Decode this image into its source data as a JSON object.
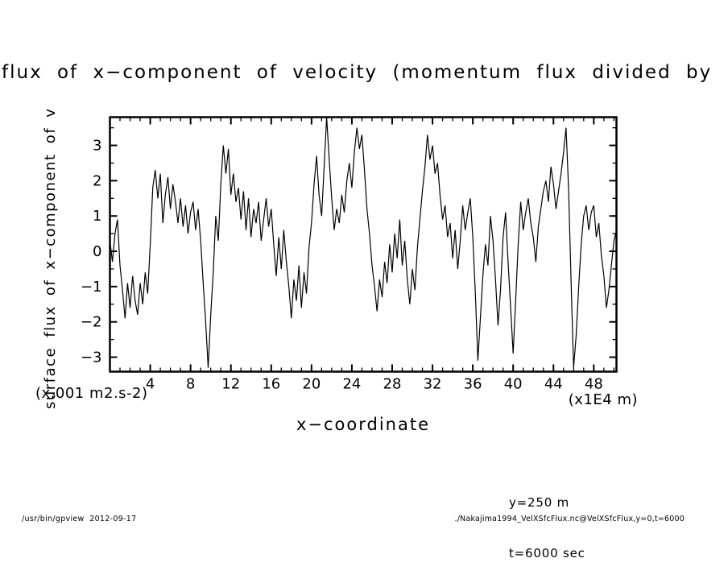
{
  "footer": {
    "left": "/usr/bin/gpview  2012-09-17",
    "right": "./Nakajima1994_VelXSfcFlux.nc@VelXSfcFlux,y=0,t=6000"
  },
  "chart_data": {
    "type": "line",
    "title": "flux of x−component of velocity (momentum flux divided by",
    "xlabel": "x−coordinate",
    "ylabel": "surface flux of x−component of v",
    "x_unit_label": "(x1E4 m)",
    "y_unit_label": "(x.001 m2.s-2)",
    "annotations": [
      "y=250 m",
      "t=6000 sec"
    ],
    "line_color": "#000000",
    "grid": false,
    "legend": "none",
    "xlim": [
      0,
      50.25
    ],
    "ylim": [
      -3.41,
      3.8
    ],
    "xticks": {
      "major_start": 4,
      "major_step": 4,
      "major_end": 48,
      "minor_step": 1
    },
    "yticks": {
      "major_start": -3,
      "major_step": 1,
      "major_end": 3,
      "minor_step": 0.5
    },
    "x_start": 0,
    "x_step": 0.25,
    "values": [
      0.3,
      -0.3,
      0.5,
      0.9,
      -0.4,
      -1.1,
      -1.9,
      -0.9,
      -1.6,
      -0.7,
      -1.4,
      -1.8,
      -0.9,
      -1.5,
      -0.6,
      -1.2,
      0.2,
      1.8,
      2.3,
      1.5,
      2.2,
      0.8,
      1.6,
      2.1,
      1.2,
      1.9,
      1.4,
      0.8,
      1.5,
      0.7,
      1.3,
      0.5,
      1.1,
      1.4,
      0.6,
      1.2,
      0.3,
      -0.9,
      -2.0,
      -3.3,
      -1.8,
      -0.6,
      1.0,
      0.3,
      1.9,
      3.0,
      2.2,
      2.9,
      1.6,
      2.2,
      1.4,
      1.8,
      0.9,
      1.7,
      0.6,
      1.5,
      0.4,
      1.2,
      0.8,
      1.4,
      0.3,
      0.9,
      1.5,
      0.7,
      1.2,
      0.2,
      -0.7,
      0.4,
      -0.5,
      0.6,
      -0.3,
      -1.0,
      -1.9,
      -0.8,
      -1.4,
      -0.4,
      -1.6,
      -0.6,
      -1.2,
      0.1,
      0.8,
      1.9,
      2.7,
      1.6,
      1.0,
      2.4,
      3.8,
      2.6,
      1.5,
      0.6,
      1.2,
      0.8,
      1.6,
      1.1,
      2.0,
      2.5,
      1.8,
      2.8,
      3.5,
      2.9,
      3.3,
      2.3,
      1.2,
      0.5,
      -0.4,
      -1.0,
      -1.7,
      -0.8,
      -1.3,
      -0.3,
      -0.9,
      0.2,
      -0.6,
      0.5,
      -0.2,
      0.9,
      -0.4,
      0.3,
      -0.8,
      -1.5,
      -0.5,
      -1.1,
      0.1,
      0.9,
      1.7,
      2.4,
      3.3,
      2.6,
      3.0,
      2.2,
      2.5,
      1.6,
      0.9,
      1.3,
      0.4,
      0.8,
      -0.2,
      0.6,
      -0.5,
      0.3,
      1.3,
      0.6,
      1.1,
      1.5,
      0.4,
      -1.2,
      -3.1,
      -1.9,
      -0.7,
      0.2,
      -0.4,
      1.0,
      0.3,
      -0.8,
      -2.1,
      -1.1,
      0.4,
      1.1,
      -0.3,
      -1.6,
      -2.9,
      -1.4,
      0.2,
      1.4,
      0.6,
      1.1,
      1.5,
      0.8,
      0.4,
      -0.3,
      0.7,
      1.2,
      1.7,
      2.0,
      1.4,
      2.4,
      1.9,
      1.2,
      1.7,
      2.2,
      2.8,
      3.5,
      1.8,
      -0.9,
      -3.3,
      -2.4,
      -1.0,
      0.2,
      1.0,
      1.3,
      0.6,
      1.1,
      1.3,
      0.4,
      0.8,
      -0.1,
      -0.7,
      -1.6,
      -1.1,
      -0.4,
      0.3,
      0.6
    ]
  }
}
